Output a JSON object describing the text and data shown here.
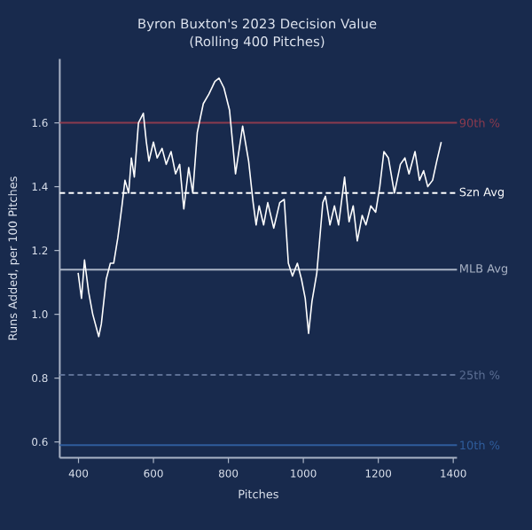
{
  "chart_data": {
    "type": "line",
    "title": "Byron Buxton's 2023 Decision Value",
    "subtitle": "(Rolling 400 Pitches)",
    "xlabel": "Pitches",
    "ylabel": "Runs Added, per 100 Pitches",
    "x": [
      399,
      408,
      416,
      427,
      438,
      454,
      461,
      474,
      485,
      494,
      505,
      516,
      524,
      534,
      541,
      549,
      560,
      573,
      581,
      588,
      600,
      610,
      623,
      634,
      647,
      659,
      670,
      681,
      694,
      705,
      717,
      733,
      748,
      764,
      775,
      788,
      803,
      819,
      838,
      854,
      866,
      874,
      882,
      894,
      905,
      921,
      937,
      949,
      960,
      971,
      984,
      995,
      1005,
      1014,
      1023,
      1036,
      1052,
      1059,
      1071,
      1083,
      1094,
      1110,
      1122,
      1133,
      1144,
      1157,
      1167,
      1180,
      1193,
      1204,
      1215,
      1227,
      1243,
      1259,
      1271,
      1282,
      1298,
      1310,
      1321,
      1332,
      1345,
      1356,
      1368
    ],
    "series": [
      {
        "color": "#ffffff",
        "values": [
          1.13,
          1.05,
          1.17,
          1.07,
          1.0,
          0.93,
          0.97,
          1.11,
          1.16,
          1.16,
          1.24,
          1.34,
          1.42,
          1.38,
          1.49,
          1.43,
          1.6,
          1.63,
          1.54,
          1.48,
          1.54,
          1.49,
          1.52,
          1.47,
          1.51,
          1.44,
          1.47,
          1.33,
          1.46,
          1.38,
          1.57,
          1.66,
          1.69,
          1.73,
          1.74,
          1.71,
          1.64,
          1.44,
          1.59,
          1.48,
          1.35,
          1.28,
          1.34,
          1.28,
          1.35,
          1.27,
          1.35,
          1.36,
          1.16,
          1.12,
          1.16,
          1.11,
          1.05,
          0.94,
          1.04,
          1.13,
          1.35,
          1.37,
          1.28,
          1.34,
          1.28,
          1.43,
          1.29,
          1.34,
          1.23,
          1.31,
          1.28,
          1.34,
          1.32,
          1.4,
          1.51,
          1.49,
          1.38,
          1.47,
          1.49,
          1.44,
          1.51,
          1.42,
          1.45,
          1.4,
          1.42,
          1.48,
          1.54
        ]
      }
    ],
    "xlim": [
      350,
      1410
    ],
    "ylim": [
      0.55,
      1.8
    ],
    "xticks": [
      400,
      600,
      800,
      1000,
      1200,
      1400
    ],
    "yticks": [
      0.6,
      0.8,
      {
        "value": 1,
        "label": "1.0"
      },
      1.2,
      1.4,
      1.6
    ],
    "ref_lines": [
      {
        "axis": "y",
        "value": 1.6,
        "label": "90th %",
        "color": "#8b3a4e",
        "line_style": "solid"
      },
      {
        "axis": "y",
        "value": 1.38,
        "label": "Szn Avg",
        "color": "#ffffff",
        "line_style": "dashed"
      },
      {
        "axis": "y",
        "value": 1.14,
        "label": "MLB Avg",
        "color": "#aab4c6",
        "line_style": "solid"
      },
      {
        "axis": "y",
        "value": 0.81,
        "label": "25th %",
        "color": "#5c6f94",
        "line_style": "dashed"
      },
      {
        "axis": "y",
        "value": 0.59,
        "label": "10th %",
        "color": "#2f5d9c",
        "line_style": "solid"
      }
    ],
    "marker": "none",
    "line_style": "solid"
  }
}
